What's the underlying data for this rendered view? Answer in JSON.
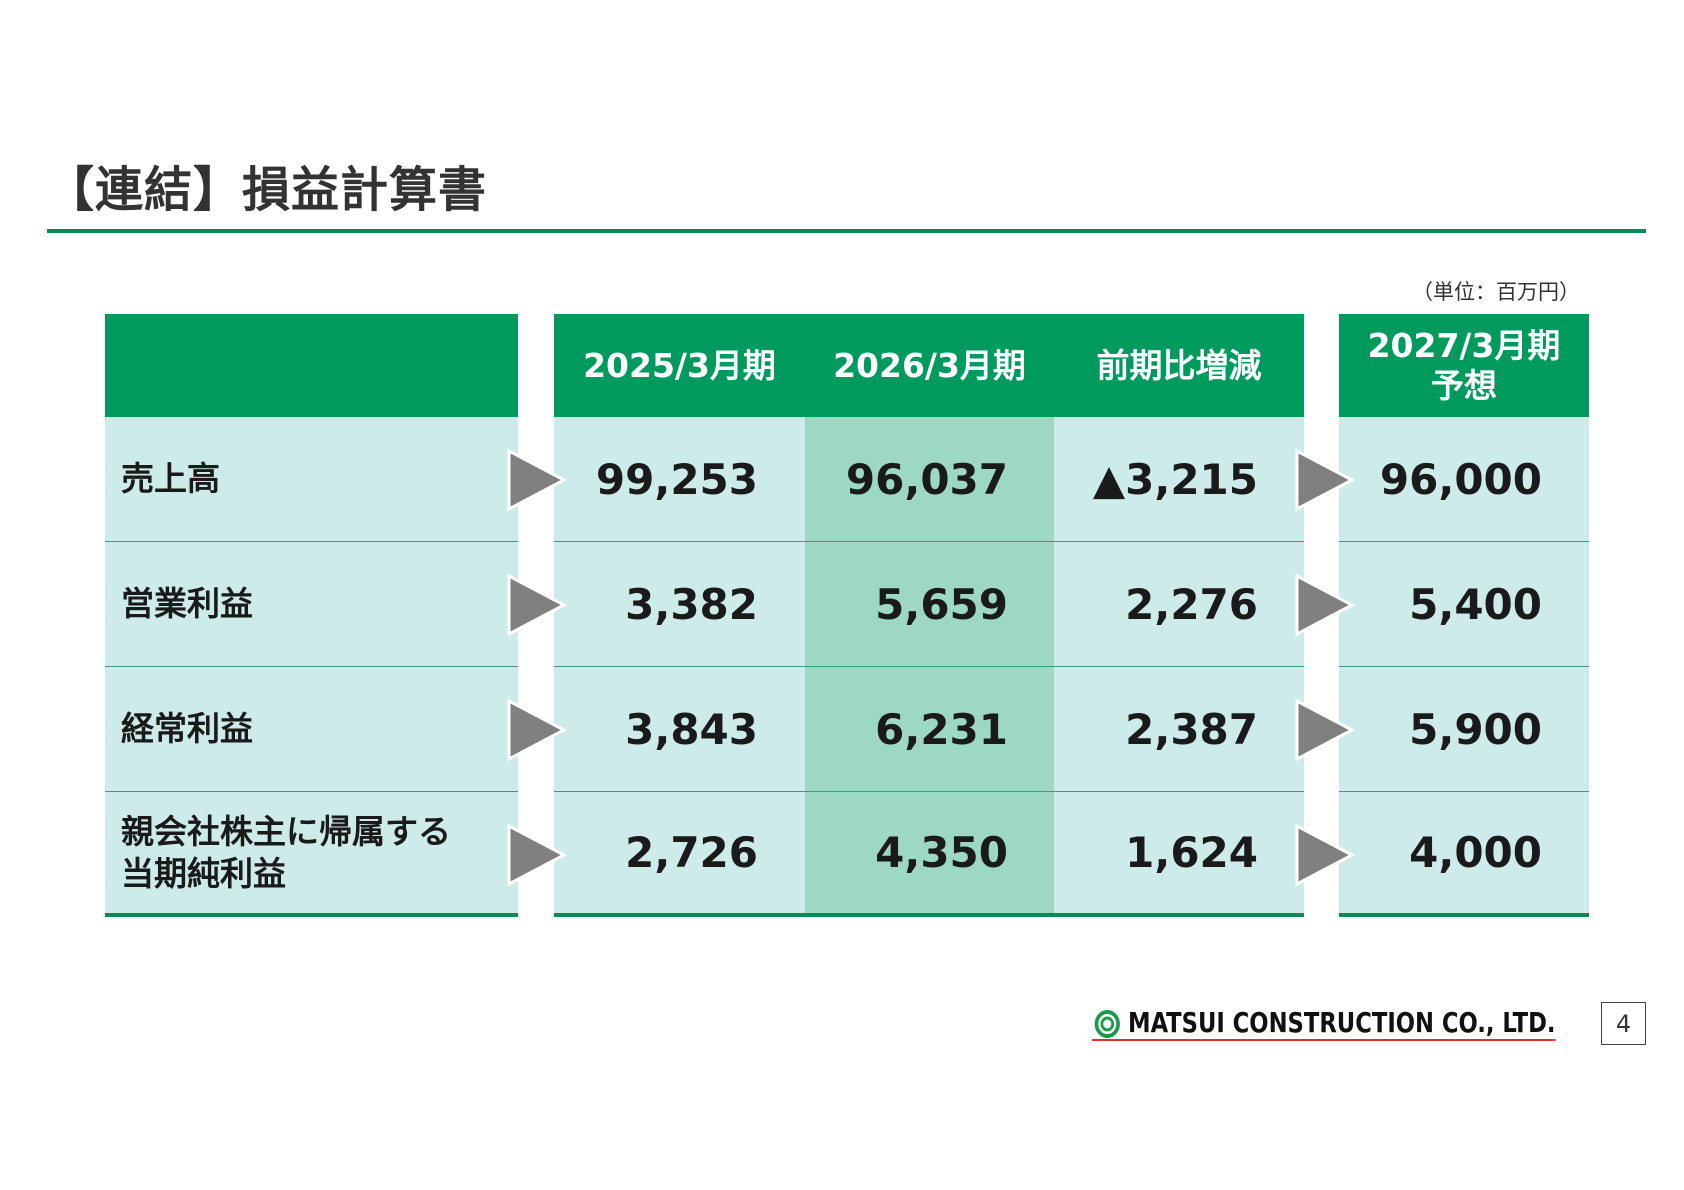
{
  "header": {
    "title": "【連結】損益計算書"
  },
  "unit": "（単位：百万円）",
  "table": {
    "columns": [
      "2025/3月期",
      "2026/3月期",
      "前期比増減",
      "2027/3月期\n予想"
    ],
    "rows": [
      {
        "label": "売上高",
        "values": [
          "99,253",
          "96,037",
          "▲3,215",
          "96,000"
        ]
      },
      {
        "label": "営業利益",
        "values": [
          "3,382",
          "5,659",
          "2,276",
          "5,400"
        ]
      },
      {
        "label": "経常利益",
        "values": [
          "3,843",
          "6,231",
          "2,387",
          "5,900"
        ]
      },
      {
        "label": "親会社株主に帰属する\n当期純利益",
        "values": [
          "2,726",
          "4,350",
          "1,624",
          "4,000"
        ]
      }
    ]
  },
  "footer": {
    "company": "MATSUI CONSTRUCTION CO., LTD.",
    "page": "4"
  }
}
